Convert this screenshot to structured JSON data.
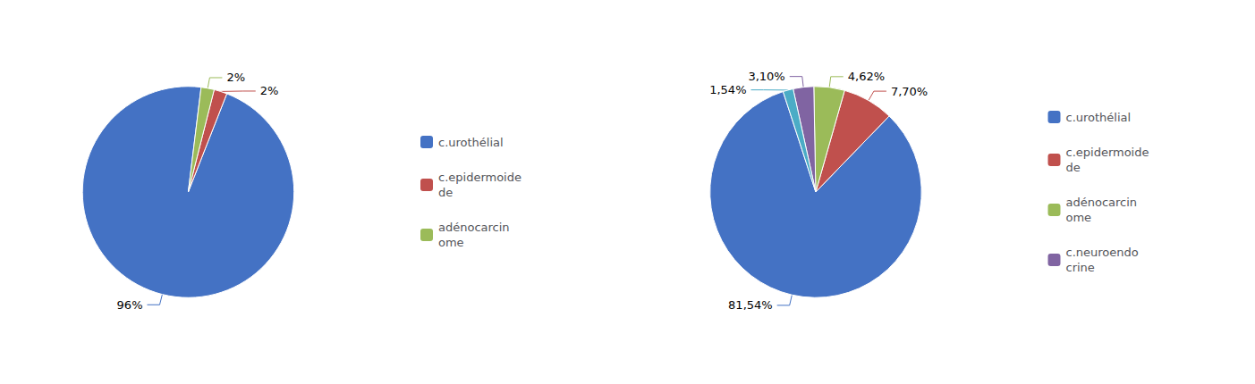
{
  "chart_data": [
    {
      "type": "pie",
      "categories": [
        "c.urothélial",
        "c.epidermoide\nde",
        "adénocarcin\nome"
      ],
      "values": [
        96,
        2,
        2
      ],
      "value_labels": [
        "96%",
        "2%",
        "2%"
      ],
      "colors": [
        "#4472C4",
        "#C0504D",
        "#9BBB59"
      ],
      "data_labels": true,
      "legend": "right"
    },
    {
      "type": "pie",
      "categories": [
        "c.urothélial",
        "c.epidermoide\nde",
        "adénocarcin\nome",
        "c.neuroendo\ncrine",
        null
      ],
      "values": [
        81.54,
        7.7,
        4.62,
        3.1,
        1.54
      ],
      "value_labels": [
        "81,54%",
        "7,70%",
        "4,62%",
        "3,10%",
        "1,54%"
      ],
      "colors": [
        "#4472C4",
        "#C0504D",
        "#9BBB59",
        "#8064A2",
        "#4BACC6"
      ],
      "data_labels": true,
      "legend": "right"
    }
  ]
}
